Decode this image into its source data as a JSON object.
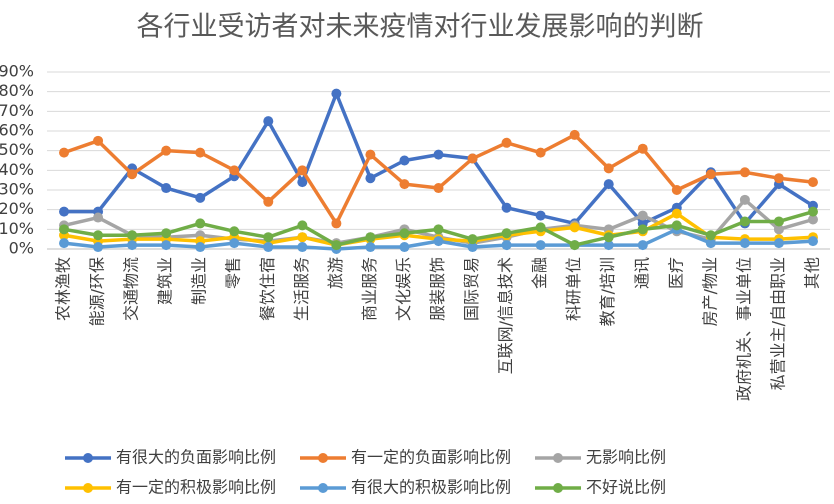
{
  "chart_data": {
    "type": "line",
    "title": "各行业受访者对未来疫情对行业发展影响的判断",
    "categories": [
      "农林渔牧",
      "能源/环保",
      "交通物流",
      "建筑业",
      "制造业",
      "零售",
      "餐饮住宿",
      "生活服务",
      "旅游",
      "商业服务",
      "文化娱乐",
      "服装服饰",
      "国际贸易",
      "互联网/信息技术",
      "金融",
      "科研单位",
      "教育/培训",
      "通讯",
      "医疗",
      "房产/物业",
      "政府机关、事业单位",
      "私营业主/自由职业",
      "其他"
    ],
    "series": [
      {
        "name": "有很大的负面影响比例",
        "color": "#4472c4",
        "values": [
          19,
          19,
          41,
          31,
          26,
          37,
          65,
          34,
          79,
          36,
          45,
          48,
          46,
          21,
          17,
          13,
          33,
          13,
          21,
          39,
          13,
          33,
          22
        ]
      },
      {
        "name": "有一定的负面影响比例",
        "color": "#ed7d31",
        "values": [
          49,
          55,
          38,
          50,
          49,
          40,
          24,
          40,
          13,
          48,
          33,
          31,
          46,
          54,
          49,
          58,
          41,
          51,
          30,
          38,
          39,
          36,
          34
        ]
      },
      {
        "name": "无影响比例",
        "color": "#a5a5a5",
        "values": [
          12,
          16,
          7,
          6,
          7,
          5,
          4,
          6,
          3,
          6,
          10,
          6,
          3,
          6,
          10,
          12,
          10,
          17,
          9,
          5,
          25,
          10,
          15
        ]
      },
      {
        "name": "有一定的积极影响比例",
        "color": "#ffc000",
        "values": [
          7,
          4,
          5,
          5,
          4,
          6,
          3,
          6,
          2,
          5,
          7,
          5,
          4,
          7,
          9,
          11,
          7,
          9,
          18,
          6,
          5,
          5,
          6
        ]
      },
      {
        "name": "有很大的积极影响比例",
        "color": "#5b9bd5",
        "values": [
          3,
          1,
          2,
          2,
          1,
          3,
          1,
          1,
          0,
          1,
          1,
          4,
          1,
          2,
          2,
          2,
          2,
          2,
          10,
          3,
          3,
          3,
          4
        ]
      },
      {
        "name": "不好说比例",
        "color": "#70ad47",
        "values": [
          10,
          7,
          7,
          8,
          13,
          9,
          6,
          12,
          2,
          6,
          8,
          10,
          5,
          8,
          11,
          2,
          6,
          10,
          12,
          7,
          14,
          14,
          19
        ]
      }
    ],
    "ylim": [
      0,
      90
    ],
    "yticks": [
      {
        "value": 0,
        "label": "0%"
      },
      {
        "value": 10,
        "label": "10%"
      },
      {
        "value": 20,
        "label": "20%"
      },
      {
        "value": 30,
        "label": "30%"
      },
      {
        "value": 40,
        "label": "40%"
      },
      {
        "value": 50,
        "label": "50%"
      },
      {
        "value": 60,
        "label": "60%"
      },
      {
        "value": 70,
        "label": "70%"
      },
      {
        "value": 80,
        "label": "80%"
      },
      {
        "value": 90,
        "label": "90%"
      }
    ],
    "grid": true
  }
}
